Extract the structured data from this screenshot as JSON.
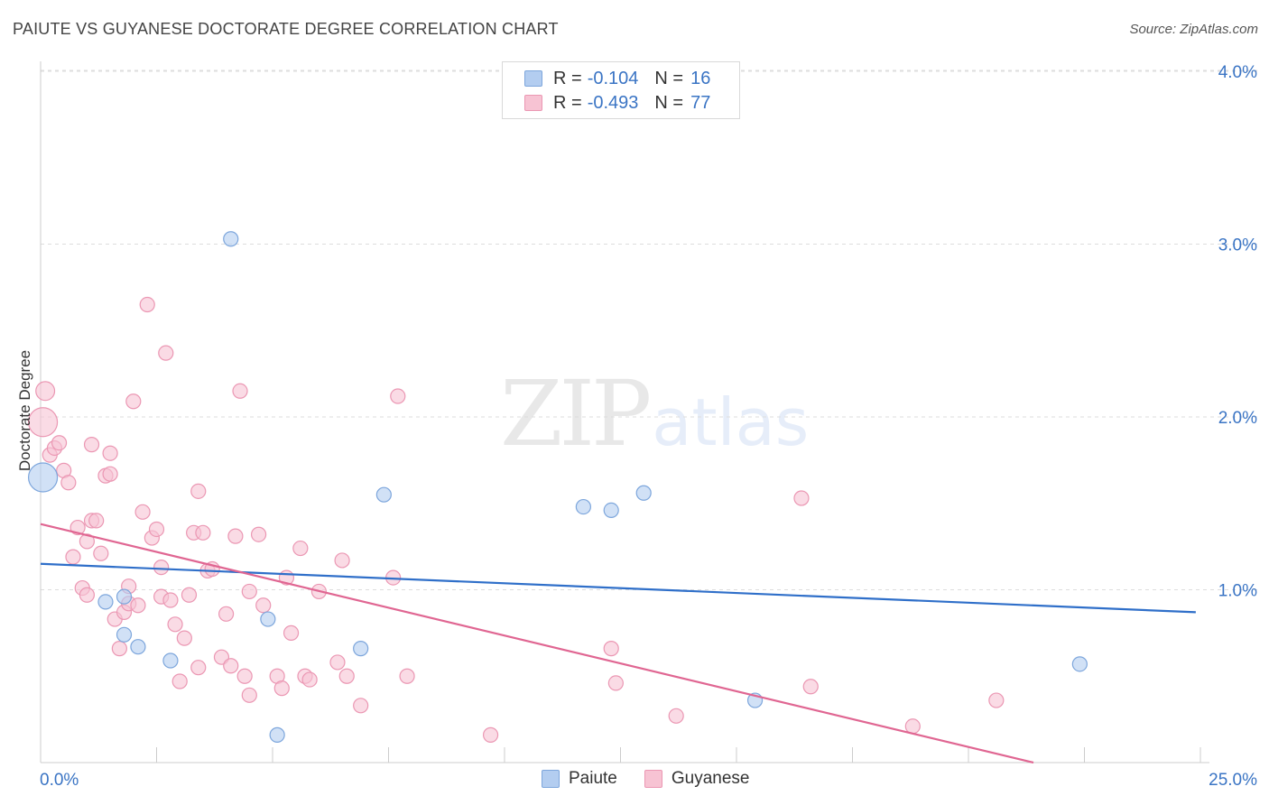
{
  "title": "PAIUTE VS GUYANESE DOCTORATE DEGREE CORRELATION CHART",
  "source": "Source: ZipAtlas.com",
  "watermark": {
    "zip": "ZIP",
    "atlas": "atlas"
  },
  "colors": {
    "paiute_fill": "#b3cdf0",
    "paiute_stroke": "#7da6dc",
    "paiute_line": "#2f6fc9",
    "guyanese_fill": "#f7c3d3",
    "guyanese_stroke": "#eb97b3",
    "guyanese_line": "#e06692",
    "axis_text": "#3a74c4",
    "grid": "#dddddd"
  },
  "legend": {
    "rows": [
      {
        "r_label": "R =",
        "r_value": "-0.104",
        "n_label": "N =",
        "n_value": "16"
      },
      {
        "r_label": "R =",
        "r_value": "-0.493",
        "n_label": "N =",
        "n_value": "77"
      }
    ]
  },
  "bottom_legend": {
    "paiute": "Paiute",
    "guyanese": "Guyanese"
  },
  "chart_data": {
    "type": "scatter",
    "title": "PAIUTE VS GUYANESE DOCTORATE DEGREE CORRELATION CHART",
    "xlabel": "",
    "ylabel": "Doctorate Degree",
    "xlim": [
      0,
      25
    ],
    "ylim": [
      0,
      4.2
    ],
    "x_tick_labels": [
      "0.0%",
      "25.0%"
    ],
    "y_ticks": [
      1,
      2,
      3,
      4
    ],
    "y_tick_labels": [
      "1.0%",
      "2.0%",
      "3.0%",
      "4.0%"
    ],
    "series": [
      {
        "name": "Paiute",
        "r": -0.104,
        "n": 16,
        "trend": [
          [
            0,
            1.15
          ],
          [
            24.9,
            0.87
          ]
        ],
        "points": [
          [
            0.05,
            1.65,
            2.0
          ],
          [
            1.4,
            0.93,
            1
          ],
          [
            1.8,
            0.96,
            1
          ],
          [
            1.8,
            0.74,
            1
          ],
          [
            2.1,
            0.67,
            1
          ],
          [
            2.8,
            0.59,
            1
          ],
          [
            4.1,
            3.03,
            1
          ],
          [
            4.9,
            0.83,
            1
          ],
          [
            5.1,
            0.16,
            1
          ],
          [
            6.9,
            0.66,
            1
          ],
          [
            7.4,
            1.55,
            1
          ],
          [
            11.7,
            1.48,
            1
          ],
          [
            12.3,
            1.46,
            1
          ],
          [
            13.0,
            1.56,
            1
          ],
          [
            15.4,
            0.36,
            1
          ],
          [
            22.4,
            0.57,
            1
          ]
        ]
      },
      {
        "name": "Guyanese",
        "r": -0.493,
        "n": 77,
        "trend": [
          [
            0,
            1.38
          ],
          [
            21.4,
            0.0
          ]
        ],
        "points": [
          [
            0.05,
            1.97,
            2.0
          ],
          [
            0.1,
            2.15,
            1.3
          ],
          [
            0.2,
            1.78,
            1
          ],
          [
            0.3,
            1.82,
            1
          ],
          [
            0.4,
            1.85,
            1
          ],
          [
            0.5,
            1.69,
            1
          ],
          [
            0.6,
            1.62,
            1
          ],
          [
            0.7,
            1.19,
            1
          ],
          [
            0.8,
            1.36,
            1
          ],
          [
            0.9,
            1.01,
            1
          ],
          [
            1.0,
            0.97,
            1
          ],
          [
            1.0,
            1.28,
            1
          ],
          [
            1.1,
            1.4,
            1
          ],
          [
            1.1,
            1.84,
            1
          ],
          [
            1.2,
            1.4,
            1
          ],
          [
            1.3,
            1.21,
            1
          ],
          [
            1.4,
            1.66,
            1
          ],
          [
            1.5,
            1.67,
            1
          ],
          [
            1.5,
            1.79,
            1
          ],
          [
            1.6,
            0.83,
            1
          ],
          [
            1.7,
            0.66,
            1
          ],
          [
            1.8,
            0.87,
            1
          ],
          [
            1.9,
            0.92,
            1
          ],
          [
            1.9,
            1.02,
            1
          ],
          [
            2.0,
            2.09,
            1
          ],
          [
            2.1,
            0.91,
            1
          ],
          [
            2.2,
            1.45,
            1
          ],
          [
            2.3,
            2.65,
            1
          ],
          [
            2.4,
            1.3,
            1
          ],
          [
            2.5,
            1.35,
            1
          ],
          [
            2.6,
            0.96,
            1
          ],
          [
            2.6,
            1.13,
            1
          ],
          [
            2.7,
            2.37,
            1
          ],
          [
            2.8,
            0.94,
            1
          ],
          [
            2.9,
            0.8,
            1
          ],
          [
            3.0,
            0.47,
            1
          ],
          [
            3.1,
            0.72,
            1
          ],
          [
            3.2,
            0.97,
            1
          ],
          [
            3.3,
            1.33,
            1
          ],
          [
            3.4,
            0.55,
            1
          ],
          [
            3.4,
            1.57,
            1
          ],
          [
            3.5,
            1.33,
            1
          ],
          [
            3.6,
            1.11,
            1
          ],
          [
            3.7,
            1.12,
            1
          ],
          [
            3.9,
            0.61,
            1
          ],
          [
            4.0,
            0.86,
            1
          ],
          [
            4.1,
            0.56,
            1
          ],
          [
            4.2,
            1.31,
            1
          ],
          [
            4.3,
            2.15,
            1
          ],
          [
            4.4,
            0.5,
            1
          ],
          [
            4.5,
            0.39,
            1
          ],
          [
            4.5,
            0.99,
            1
          ],
          [
            4.7,
            1.32,
            1
          ],
          [
            4.8,
            0.91,
            1
          ],
          [
            5.1,
            0.5,
            1
          ],
          [
            5.2,
            0.43,
            1
          ],
          [
            5.3,
            1.07,
            1
          ],
          [
            5.4,
            0.75,
            1
          ],
          [
            5.6,
            1.24,
            1
          ],
          [
            5.7,
            0.5,
            1
          ],
          [
            5.8,
            0.48,
            1
          ],
          [
            6.0,
            0.99,
            1
          ],
          [
            6.4,
            0.58,
            1
          ],
          [
            6.5,
            1.17,
            1
          ],
          [
            6.6,
            0.5,
            1
          ],
          [
            6.9,
            0.33,
            1
          ],
          [
            7.6,
            1.07,
            1
          ],
          [
            7.7,
            2.12,
            1
          ],
          [
            7.9,
            0.5,
            1
          ],
          [
            9.7,
            0.16,
            1
          ],
          [
            12.3,
            0.66,
            1
          ],
          [
            12.4,
            0.46,
            1
          ],
          [
            13.7,
            0.27,
            1
          ],
          [
            16.4,
            1.53,
            1
          ],
          [
            16.6,
            0.44,
            1
          ],
          [
            18.8,
            0.21,
            1
          ],
          [
            20.6,
            0.36,
            1
          ]
        ]
      }
    ]
  }
}
